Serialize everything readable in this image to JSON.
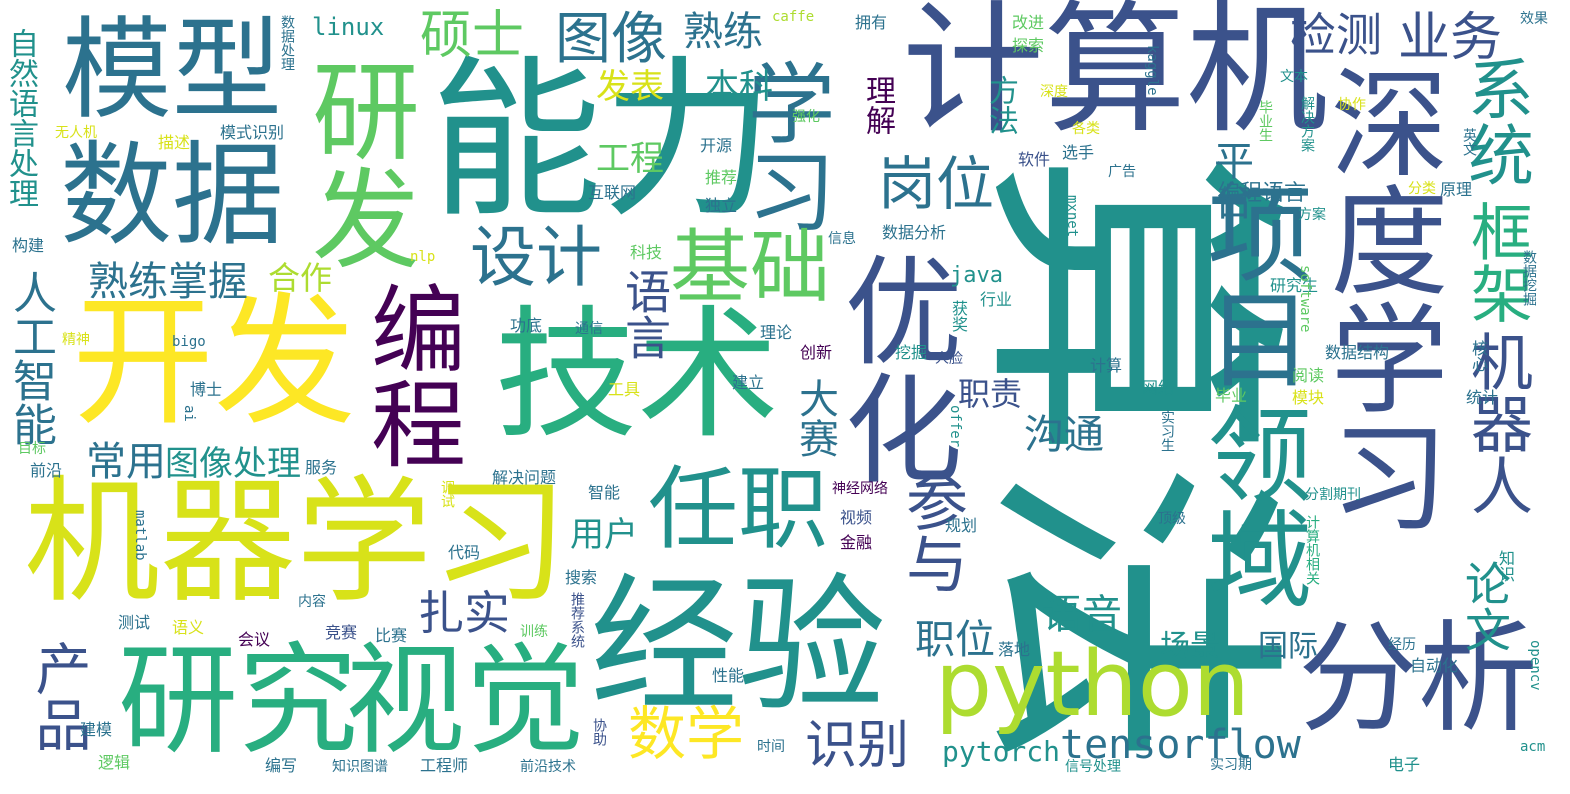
{
  "palette": {
    "background": "#ffffff",
    "deep_purple": "#440154",
    "indigo": "#3b528b",
    "teal_blue": "#2c728e",
    "teal": "#21918c",
    "green_teal": "#28ae80",
    "green": "#5ec962",
    "lime": "#addc30",
    "yellow": "#fde725"
  },
  "words": {
    "suanfa": "算法",
    "nengli": "能力",
    "jisuanji": "计算机",
    "jingyan": "经验",
    "jishu": "技术",
    "kaifa": "开发",
    "jiqixuexi": "机器学习",
    "shenduxuexi": "深度学习",
    "moxing": "模型",
    "shuju": "数据",
    "yanjiu": "研究",
    "shijue": "视觉",
    "python": "python",
    "fenxi": "分析",
    "yanfa": "研发",
    "youhua": "优化",
    "xiangmu": "项目",
    "lingyu": "领域",
    "biancheng": "编程",
    "renzhi": "任职",
    "xuexi": "学习",
    "jiqiren": "机器人",
    "xitong": "系统",
    "kuangjia": "框架",
    "jichu": "基础",
    "sheji": "设计",
    "tuxiang": "图像",
    "gangwei": "岗位",
    "shuoshi": "硕士",
    "jiance": "检测",
    "yewu": "业务",
    "shulian": "熟练",
    "canyu": "参与",
    "chanpin": "产品",
    "shuxue": "数学",
    "shibie": "识别",
    "zhashi": "扎实",
    "yuyan": "语言",
    "changyong": "常用",
    "tuxiangchuli": "图像处理",
    "shulianzhangwo": "熟练掌握",
    "tensorflow": "tensorflow",
    "pytorch": "pytorch",
    "zhiwei": "职位",
    "yuyin": "语音",
    "goutong": "沟通",
    "dasai": "大赛",
    "lunwen": "论文",
    "pingtai": "平台",
    "ziranyuyanchuli": "自然语言处理",
    "rengongzhineng": "人工智能",
    "fabiao": "发表",
    "benke": "本科",
    "gongcheng": "工程",
    "hezuo": "合作",
    "lijie": "理解",
    "fangfa": "方法",
    "zhize": "职责",
    "yonghu": "用户",
    "changjing": "场景",
    "guoji": "国际",
    "bianchengyuyan": "编程语言",
    "linux": "linux",
    "java": "java",
    "moshishibie": "模式识别",
    "shujuchuli": "数据处理",
    "kaiyuan": "开源",
    "hulianwang": "互联网",
    "tuijian": "推荐",
    "duli": "独立",
    "ruanjian": "软件",
    "xuanshou": "选手",
    "guanggao": "广告",
    "yanjiusheng": "研究生",
    "shujujiegou": "数据结构",
    "shujufenxi": "数据分析",
    "huojiang": "获奖",
    "hangye": "行业",
    "wajue": "挖掘",
    "renlian": "人脸",
    "jisuan": "计算",
    "wangluo": "网络",
    "biye": "毕业",
    "mokuai": "模块",
    "yuedu": "阅读",
    "tongji": "统计",
    "hexin": "核心",
    "shixisheng": "实习生",
    "shipin": "视频",
    "guihua": "规划",
    "jinrong": "金融",
    "shenjingwangluo": "神经网络",
    "jiejuewenti": "解决问题",
    "zhineng": "智能",
    "daima": "代码",
    "sousuo": "搜索",
    "tuijianxitong": "推荐系统",
    "jingsai": "竞赛",
    "bisai": "比赛",
    "neirong": "内容",
    "luodi": "落地",
    "ceshi": "测试",
    "yuyi": "语义",
    "huiyi": "会议",
    "xunlian": "训练",
    "xingneng": "性能",
    "xiezhu": "协助",
    "jianmo": "建模",
    "luoji": "逻辑",
    "bianxie": "编写",
    "zhishitupu": "知识图谱",
    "gongchengshi": "工程师",
    "qianyanjishu": "前沿技术",
    "shijian": "时间",
    "xinhaochuli": "信号处理",
    "shixiqi": "实习期",
    "dianzi": "电子",
    "zidonghua": "自动化",
    "jingli": "经历",
    "opencv": "opencv",
    "acm": "acm",
    "zhishi": "知识",
    "fengeqikan": "分割期刊",
    "dingji": "顶级",
    "jisuanjixiangguan": "计算机相关",
    "software": "software",
    "shujuwajue": "数据挖掘",
    "fangan": "方案",
    "yuanli": "原理",
    "fenlei": "分类",
    "yingwen": "英文",
    "jiejuefangan": "解决方案",
    "xiezuo": "协作",
    "wenben": "文本",
    "biyesheng": "毕业生",
    "kaggle": "kaggle",
    "xiaoguo": "效果",
    "caffe": "caffe",
    "yongyou": "拥有",
    "gaijin": "改进",
    "tansuo": "探索",
    "shendu": "深度",
    "qianghua": "强化",
    "gelei": "各类",
    "mxnet": "mxnet",
    "xinxi": "信息",
    "keji": "科技",
    "nlp": "nlp",
    "gongdi": "功底",
    "tongxin": "通信",
    "lilun": "理论",
    "chuangxin": "创新",
    "jianli": "建立",
    "gongju": "工具",
    "offer": "offer",
    "tiaoshi": "调试",
    "matlab": "matlab",
    "boshi": "博士",
    "ai": "ai",
    "bigo": "bigo",
    "jingshen": "精神",
    "mubiao": "目标",
    "qianyan": "前沿",
    "fuwu": "服务",
    "goujian": "构建",
    "wurenji": "无人机",
    "miaoshu": "描述"
  }
}
